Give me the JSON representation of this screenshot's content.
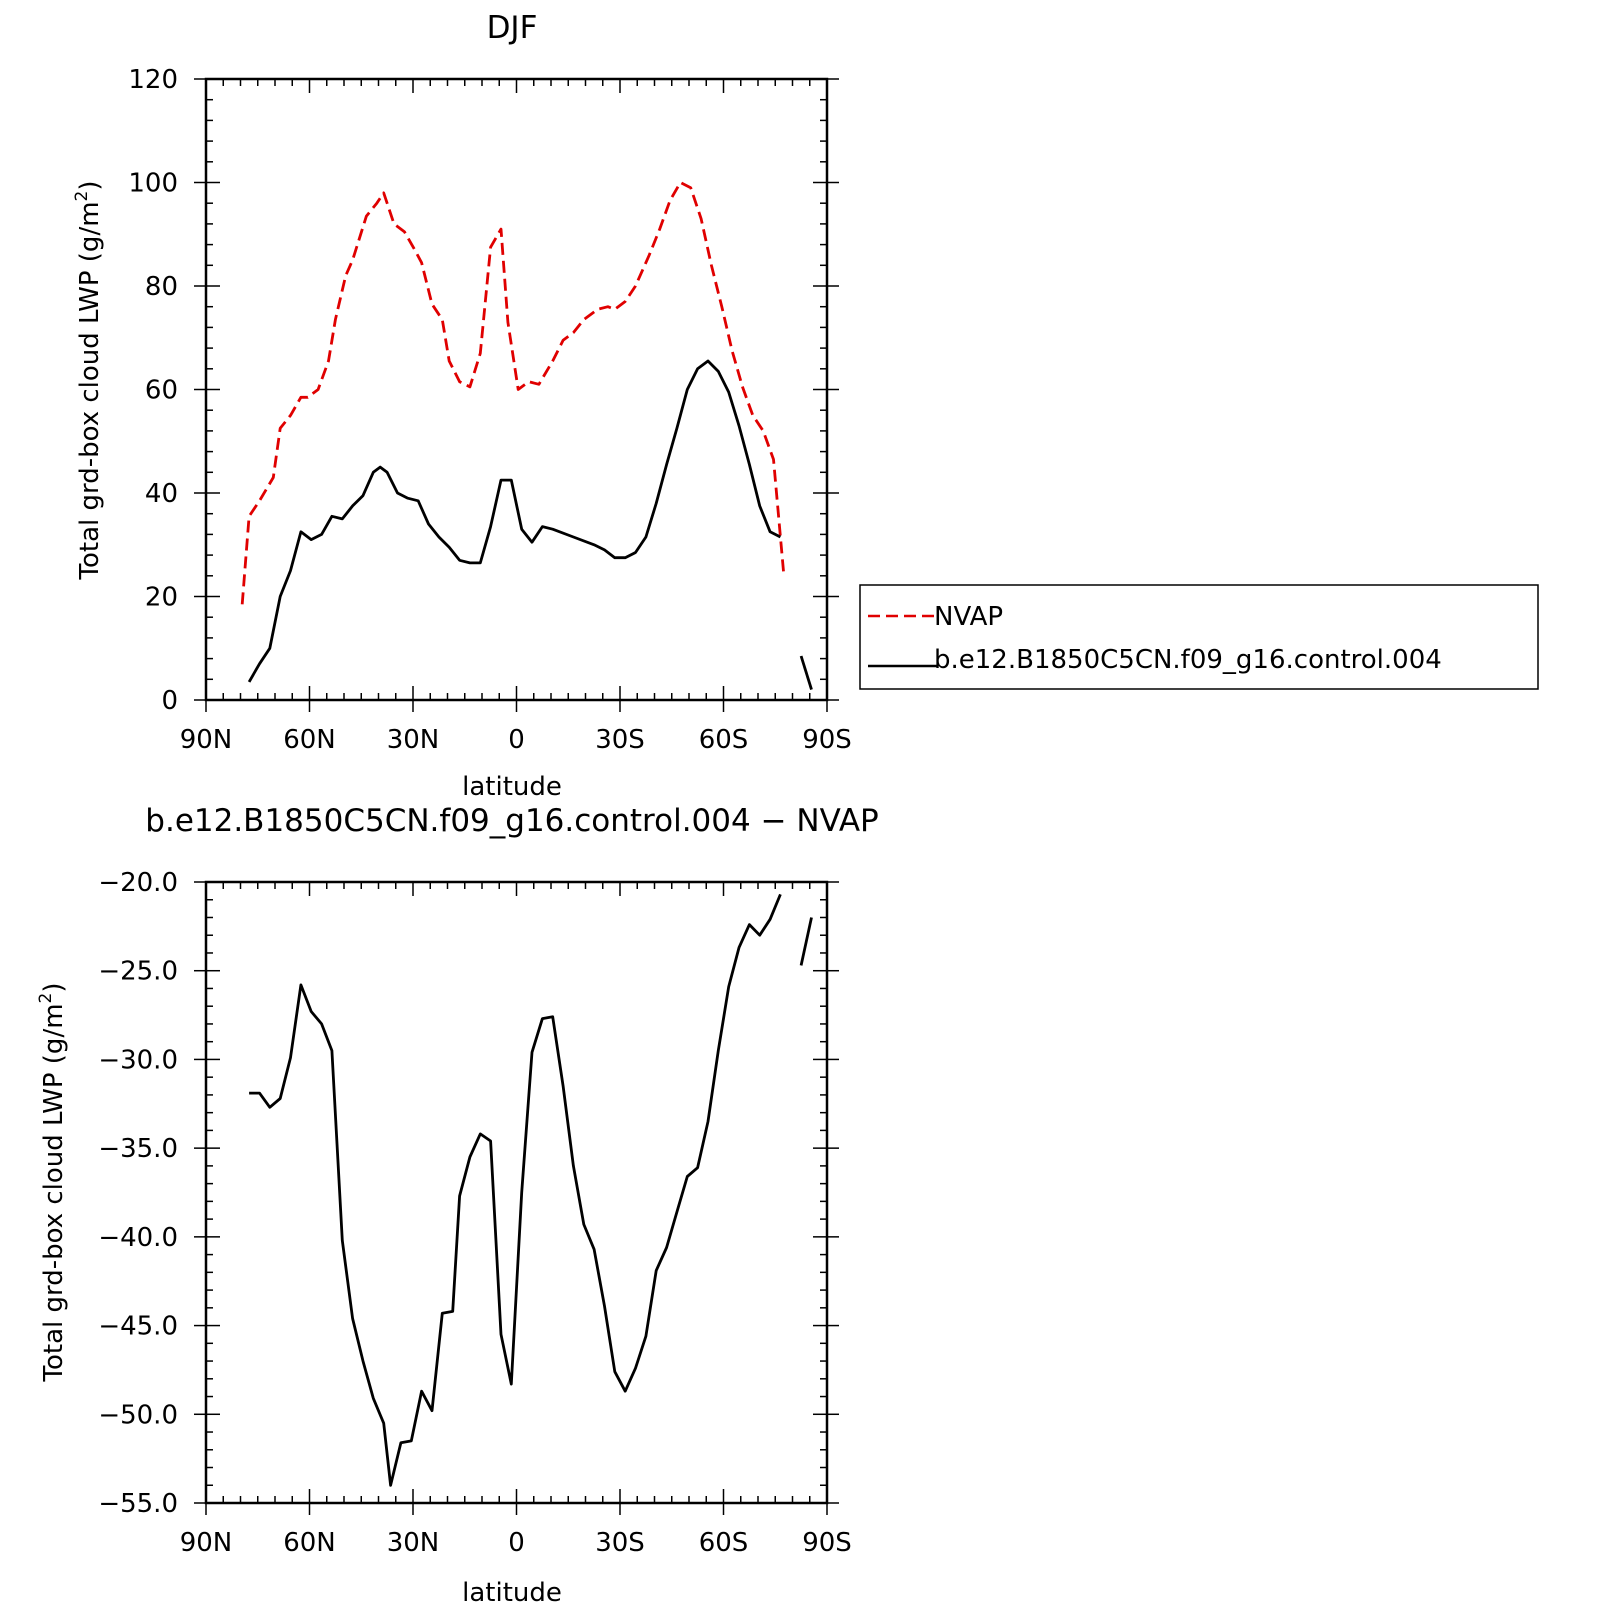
{
  "chart_data": [
    {
      "type": "line",
      "title": "DJF",
      "xlabel": "latitude",
      "ylabel": "Total grd-box cloud LWP (g/m²)",
      "ylabel_text": "Total grd-box cloud LWP (g/m",
      "ylabel_sup": "2",
      "ylabel_close": ")",
      "xlim": [
        90,
        -90
      ],
      "ylim": [
        0,
        120
      ],
      "xticks": [
        90,
        60,
        30,
        0,
        -30,
        -60,
        -90
      ],
      "xtick_labels": [
        "90N",
        "60N",
        "30N",
        "0",
        "30S",
        "60S",
        "90S"
      ],
      "yticks": [
        0,
        20,
        40,
        60,
        80,
        100,
        120
      ],
      "ytick_labels": [
        "0",
        "20",
        "40",
        "60",
        "80",
        "100",
        "120"
      ],
      "legend": {
        "position": "right",
        "entries": [
          {
            "name": "NVAP",
            "color": "#e00000",
            "dash": "dashed"
          },
          {
            "name": "b.e12.B1850C5CN.f09_g16.control.004",
            "color": "#000000",
            "dash": "solid"
          }
        ]
      },
      "series": [
        {
          "name": "NVAP",
          "color": "#e00000",
          "dash": "dashed",
          "segments": [
            [
              [
                79.5,
                18.5
              ],
              [
                77.5,
                35.5
              ],
              [
                74.5,
                38.5
              ],
              [
                70.5,
                43.0
              ],
              [
                68.5,
                52.5
              ],
              [
                65.5,
                55.0
              ],
              [
                62.5,
                58.5
              ],
              [
                60.5,
                58.5
              ],
              [
                57.5,
                60.0
              ],
              [
                54.5,
                65.5
              ],
              [
                52.5,
                73.5
              ],
              [
                49.5,
                82.0
              ],
              [
                47.5,
                85.0
              ],
              [
                43.5,
                93.5
              ],
              [
                40.5,
                96.0
              ],
              [
                38.5,
                98.0
              ],
              [
                35.5,
                92.0
              ],
              [
                32.5,
                90.5
              ],
              [
                29.5,
                87.0
              ],
              [
                27.5,
                84.5
              ],
              [
                24.5,
                76.5
              ],
              [
                21.5,
                73.5
              ],
              [
                19.5,
                65.5
              ],
              [
                16.5,
                61.5
              ],
              [
                13.5,
                60.5
              ],
              [
                10.5,
                67.0
              ],
              [
                7.5,
                87.5
              ],
              [
                4.5,
                91.0
              ],
              [
                2.5,
                73.0
              ],
              [
                -0.5,
                60.0
              ],
              [
                -3.5,
                61.5
              ],
              [
                -6.5,
                61.0
              ],
              [
                -10.5,
                65.5
              ],
              [
                -13.5,
                69.5
              ],
              [
                -16.5,
                71.0
              ],
              [
                -19.5,
                73.5
              ],
              [
                -23.5,
                75.5
              ],
              [
                -26.5,
                76.0
              ],
              [
                -28.5,
                75.5
              ],
              [
                -31.5,
                77.0
              ],
              [
                -34.5,
                80.0
              ],
              [
                -38.5,
                86.0
              ],
              [
                -41.5,
                91.0
              ],
              [
                -44.5,
                96.5
              ],
              [
                -47.5,
                100.0
              ],
              [
                -50.5,
                99.0
              ],
              [
                -53.5,
                93.0
              ],
              [
                -56.5,
                84.0
              ],
              [
                -59.5,
                76.0
              ],
              [
                -62.5,
                67.5
              ],
              [
                -65.5,
                60.5
              ],
              [
                -68.5,
                55.0
              ],
              [
                -71.5,
                52.0
              ],
              [
                -74.5,
                46.5
              ],
              [
                -77.5,
                24.0
              ]
            ]
          ]
        },
        {
          "name": "b.e12.B1850C5CN.f09_g16.control.004",
          "color": "#000000",
          "dash": "solid",
          "segments": [
            [
              [
                77.5,
                3.5
              ],
              [
                74.5,
                7.0
              ],
              [
                71.5,
                10.0
              ],
              [
                68.5,
                20.0
              ],
              [
                65.5,
                25.0
              ],
              [
                62.5,
                32.5
              ],
              [
                59.5,
                31.0
              ],
              [
                56.5,
                32.0
              ],
              [
                53.5,
                35.5
              ],
              [
                50.5,
                35.0
              ],
              [
                47.5,
                37.5
              ],
              [
                44.5,
                39.5
              ],
              [
                41.5,
                44.0
              ],
              [
                39.5,
                45.0
              ],
              [
                37.5,
                44.0
              ],
              [
                34.5,
                40.0
              ],
              [
                31.5,
                39.0
              ],
              [
                28.5,
                38.5
              ],
              [
                25.5,
                34.0
              ],
              [
                22.5,
                31.5
              ],
              [
                19.5,
                29.5
              ],
              [
                16.5,
                27.0
              ],
              [
                13.5,
                26.5
              ],
              [
                10.5,
                26.5
              ],
              [
                7.5,
                33.5
              ],
              [
                4.5,
                42.5
              ],
              [
                1.5,
                42.5
              ],
              [
                -1.5,
                33.0
              ],
              [
                -4.5,
                30.5
              ],
              [
                -7.5,
                33.5
              ],
              [
                -10.5,
                33.0
              ],
              [
                -16.5,
                31.5
              ],
              [
                -22.5,
                30.0
              ],
              [
                -25.5,
                29.0
              ],
              [
                -28.5,
                27.5
              ],
              [
                -31.5,
                27.5
              ],
              [
                -34.5,
                28.5
              ],
              [
                -37.5,
                31.5
              ],
              [
                -40.5,
                38.0
              ],
              [
                -43.5,
                45.5
              ],
              [
                -46.5,
                52.5
              ],
              [
                -49.5,
                60.0
              ],
              [
                -52.5,
                64.0
              ],
              [
                -55.5,
                65.5
              ],
              [
                -58.5,
                63.5
              ],
              [
                -61.5,
                59.5
              ],
              [
                -64.5,
                53.0
              ],
              [
                -67.5,
                45.5
              ],
              [
                -70.5,
                37.5
              ],
              [
                -73.5,
                32.5
              ],
              [
                -76.5,
                31.5
              ]
            ],
            [
              [
                -82.5,
                8.5
              ],
              [
                -85.5,
                2.0
              ]
            ]
          ]
        }
      ]
    },
    {
      "type": "line",
      "title": "b.e12.B1850C5CN.f09_g16.control.004 − NVAP",
      "xlabel": "latitude",
      "ylabel": "Total grd-box cloud LWP (g/m²)",
      "ylabel_text": "Total grd-box cloud LWP (g/m",
      "ylabel_sup": "2",
      "ylabel_close": ")",
      "xlim": [
        90,
        -90
      ],
      "ylim": [
        -55,
        -20
      ],
      "xticks": [
        90,
        60,
        30,
        0,
        -30,
        -60,
        -90
      ],
      "xtick_labels": [
        "90N",
        "60N",
        "30N",
        "0",
        "30S",
        "60S",
        "90S"
      ],
      "yticks": [
        -20,
        -25,
        -30,
        -35,
        -40,
        -45,
        -50,
        -55
      ],
      "ytick_labels": [
        "−20.0",
        "−25.0",
        "−30.0",
        "−35.0",
        "−40.0",
        "−45.0",
        "−50.0",
        "−55.0"
      ],
      "series": [
        {
          "color": "#000000",
          "dash": "solid",
          "segments": [
            [
              [
                77.5,
                -31.9
              ],
              [
                74.5,
                -31.9
              ],
              [
                71.5,
                -32.7
              ],
              [
                68.5,
                -32.2
              ],
              [
                65.5,
                -29.9
              ],
              [
                62.5,
                -25.8
              ],
              [
                59.5,
                -27.3
              ],
              [
                56.5,
                -28.0
              ],
              [
                53.5,
                -29.5
              ],
              [
                50.5,
                -40.2
              ],
              [
                47.5,
                -44.6
              ],
              [
                44.5,
                -47.0
              ],
              [
                41.5,
                -49.1
              ],
              [
                38.5,
                -50.5
              ],
              [
                36.5,
                -54.0
              ],
              [
                33.5,
                -51.6
              ],
              [
                30.5,
                -51.5
              ],
              [
                27.5,
                -48.7
              ],
              [
                24.5,
                -49.8
              ],
              [
                21.5,
                -44.3
              ],
              [
                18.5,
                -44.2
              ],
              [
                16.5,
                -37.7
              ],
              [
                13.5,
                -35.5
              ],
              [
                10.5,
                -34.2
              ],
              [
                7.5,
                -34.6
              ],
              [
                4.5,
                -45.5
              ],
              [
                1.5,
                -48.3
              ],
              [
                -1.5,
                -37.5
              ],
              [
                -4.5,
                -29.6
              ],
              [
                -7.5,
                -27.7
              ],
              [
                -10.5,
                -27.6
              ],
              [
                -13.5,
                -31.5
              ],
              [
                -16.5,
                -36.0
              ],
              [
                -19.5,
                -39.3
              ],
              [
                -22.5,
                -40.7
              ],
              [
                -25.5,
                -43.9
              ],
              [
                -28.5,
                -47.6
              ],
              [
                -31.5,
                -48.7
              ],
              [
                -34.5,
                -47.4
              ],
              [
                -37.5,
                -45.6
              ],
              [
                -40.5,
                -41.9
              ],
              [
                -43.5,
                -40.6
              ],
              [
                -46.5,
                -38.6
              ],
              [
                -49.5,
                -36.6
              ],
              [
                -52.5,
                -36.1
              ],
              [
                -55.5,
                -33.5
              ],
              [
                -58.5,
                -29.5
              ],
              [
                -61.5,
                -25.9
              ],
              [
                -64.5,
                -23.7
              ],
              [
                -67.5,
                -22.4
              ],
              [
                -70.5,
                -23.0
              ],
              [
                -73.5,
                -22.1
              ],
              [
                -76.5,
                -20.7
              ]
            ],
            [
              [
                -82.5,
                -24.7
              ],
              [
                -85.5,
                -22.0
              ]
            ]
          ]
        }
      ]
    }
  ]
}
